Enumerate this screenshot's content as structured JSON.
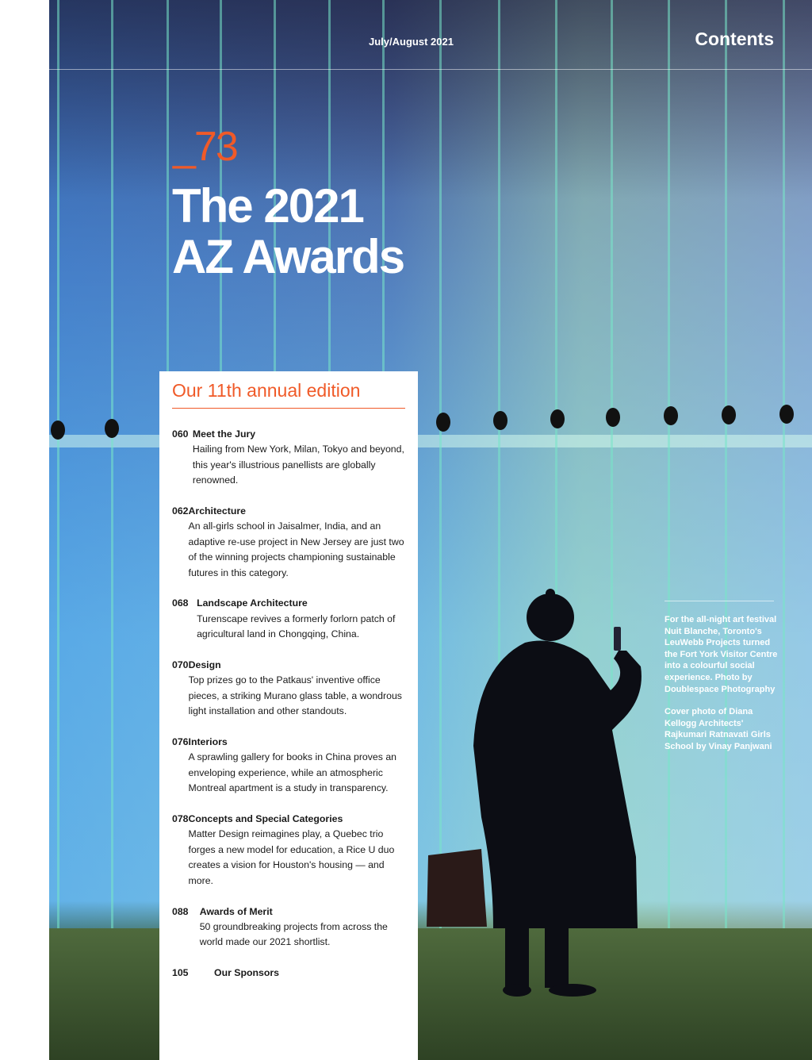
{
  "header": {
    "date": "July/August 2021",
    "section": "Contents"
  },
  "feature": {
    "number": "_73",
    "title_line1": "The 2021",
    "title_line2": "AZ Awards"
  },
  "panel": {
    "heading": "Our 11th annual edition",
    "entries": [
      {
        "page": "060",
        "title": "Meet the Jury",
        "desc": "Hailing from New York, Milan, Tokyo and beyond, this year's illustrious panellists are globally renowned."
      },
      {
        "page": "062",
        "title": "Architecture",
        "desc": "An all-girls school in Jaisalmer, India, and an adaptive re-use project in New Jersey are just two of the winning projects championing sustainable futures in this category."
      },
      {
        "page": "068",
        "title": "Landscape Architecture",
        "desc": "Turenscape revives a formerly forlorn patch of agricultural land in Chongqing, China."
      },
      {
        "page": "070",
        "title": "Design",
        "desc": "Top prizes go to the Patkaus' inventive office pieces, a striking Murano glass table, a won­drous light installation and other standouts."
      },
      {
        "page": "076",
        "title": "Interiors",
        "desc": "A sprawling gallery for books in China proves an enveloping experience, while an atmospheric Montreal apartment is a study in transparency."
      },
      {
        "page": "078",
        "title": "Concepts and Special Categories",
        "desc": "Matter Design reimagines play, a Quebec trio forges a new model for education, a Rice U duo creates a vision for Houston's housing — and more."
      },
      {
        "page": "088",
        "title": "Awards of Merit",
        "desc": "50 groundbreaking projects from across the world made our 2021 shortlist."
      },
      {
        "page": "105",
        "title": "Our Sponsors",
        "desc": ""
      }
    ]
  },
  "caption": {
    "photo": "For the all-night art festival Nuit Blanche, Toronto's LeuWebb Projects turned the Fort York Visitor Centre into a colourful social experience. Photo by Doublespace Photography",
    "cover": "Cover photo of Diana Kellogg Architects' Rajkumari Ratnavati Girls School by Vinay Panjwani"
  },
  "colors": {
    "accent": "#f05a28"
  }
}
